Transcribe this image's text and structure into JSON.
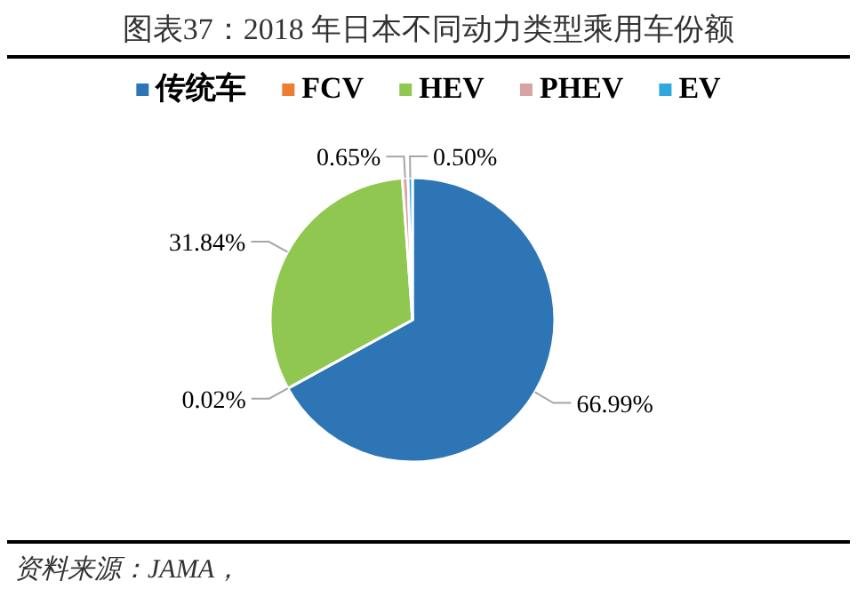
{
  "chart_data": {
    "type": "pie",
    "title": "图表37：2018 年日本不同动力类型乘用车份额",
    "categories": [
      "传统车",
      "FCV",
      "HEV",
      "PHEV",
      "EV"
    ],
    "values": [
      66.99,
      0.02,
      31.84,
      0.65,
      0.5
    ],
    "colors": [
      "#2e75b6",
      "#ed7d31",
      "#8fc750",
      "#d9a3a3",
      "#2ea8e0"
    ],
    "value_labels": [
      "66.99%",
      "0.02%",
      "31.84%",
      "0.65%",
      "0.50%"
    ],
    "legend": "top",
    "annotations": [
      "资料来源：JAMA，"
    ]
  }
}
